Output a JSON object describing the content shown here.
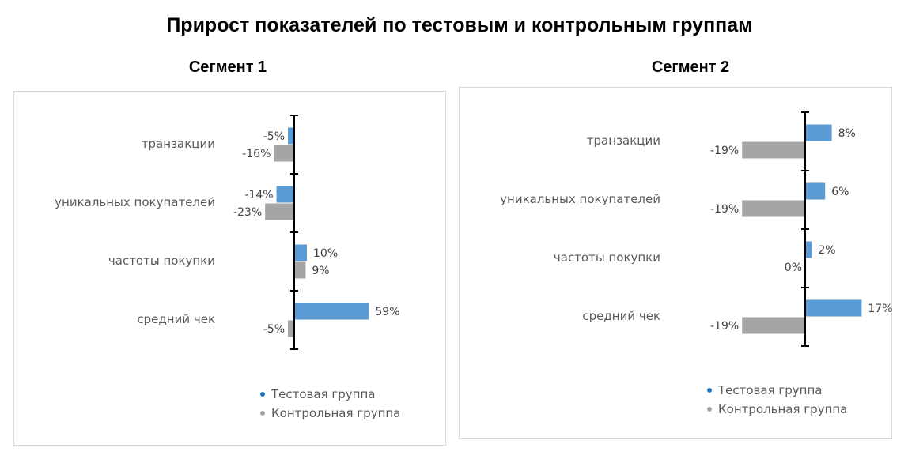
{
  "title": "Прирост показателей по тестовым и контрольным группам",
  "legend": {
    "test": "Тестовая группа",
    "control": "Контрольная группа"
  },
  "colors": {
    "test": "#5b9bd5",
    "control": "#a5a5a5"
  },
  "chart_data": [
    {
      "type": "bar",
      "orientation": "horizontal",
      "title": "Сегмент 1",
      "categories": [
        "транзакции",
        "уникальных покупателей",
        "частоты покупки",
        "средний чек"
      ],
      "series": [
        {
          "name": "Тестовая группа",
          "values": [
            -5,
            -14,
            10,
            59
          ],
          "labels": [
            "-5%",
            "-14%",
            "10%",
            "59%"
          ]
        },
        {
          "name": "Контрольная группа",
          "values": [
            -16,
            -23,
            9,
            -5
          ],
          "labels": [
            "-16%",
            "-23%",
            "9%",
            "-5%"
          ]
        }
      ],
      "unit": "%",
      "legend_position": "bottom-right"
    },
    {
      "type": "bar",
      "orientation": "horizontal",
      "title": "Сегмент 2",
      "categories": [
        "транзакции",
        "уникальных покупателей",
        "частоты покупки",
        "средний чек"
      ],
      "series": [
        {
          "name": "Тестовая группа",
          "values": [
            8,
            6,
            2,
            17
          ],
          "labels": [
            "8%",
            "6%",
            "2%",
            "17%"
          ]
        },
        {
          "name": "Контрольная группа",
          "values": [
            -19,
            -19,
            0,
            -19
          ],
          "labels": [
            "-19%",
            "-19%",
            "0%",
            "-19%"
          ]
        }
      ],
      "unit": "%",
      "legend_position": "bottom-right"
    }
  ]
}
